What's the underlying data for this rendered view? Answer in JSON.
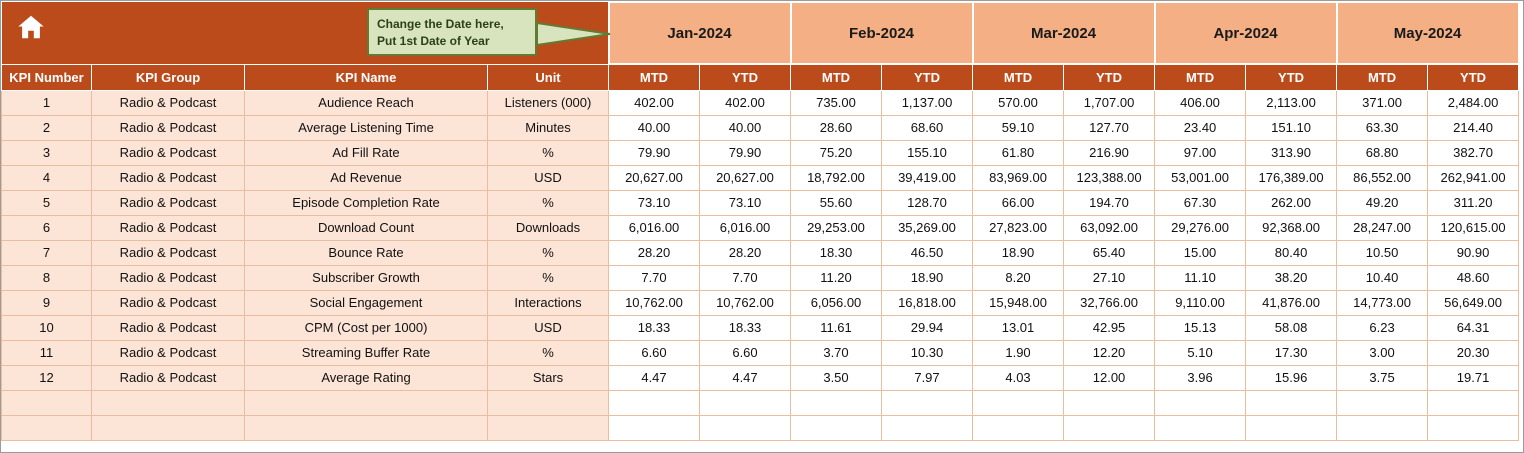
{
  "callout": {
    "line1": "Change the Date here,",
    "line2": "Put 1st Date of Year"
  },
  "table": {
    "months": [
      "Jan-2024",
      "Feb-2024",
      "Mar-2024",
      "Apr-2024",
      "May-2024"
    ],
    "period_headers": [
      "MTD",
      "YTD"
    ],
    "meta_columns": [
      "KPI Number",
      "KPI Group",
      "KPI Name",
      "Unit"
    ],
    "rows": [
      {
        "number": "1",
        "group": "Radio & Podcast",
        "name": "Audience Reach",
        "unit": "Listeners (000)",
        "values": [
          "402.00",
          "402.00",
          "735.00",
          "1,137.00",
          "570.00",
          "1,707.00",
          "406.00",
          "2,113.00",
          "371.00",
          "2,484.00"
        ]
      },
      {
        "number": "2",
        "group": "Radio & Podcast",
        "name": "Average Listening Time",
        "unit": "Minutes",
        "values": [
          "40.00",
          "40.00",
          "28.60",
          "68.60",
          "59.10",
          "127.70",
          "23.40",
          "151.10",
          "63.30",
          "214.40"
        ]
      },
      {
        "number": "3",
        "group": "Radio & Podcast",
        "name": "Ad Fill Rate",
        "unit": "%",
        "values": [
          "79.90",
          "79.90",
          "75.20",
          "155.10",
          "61.80",
          "216.90",
          "97.00",
          "313.90",
          "68.80",
          "382.70"
        ]
      },
      {
        "number": "4",
        "group": "Radio & Podcast",
        "name": "Ad Revenue",
        "unit": "USD",
        "values": [
          "20,627.00",
          "20,627.00",
          "18,792.00",
          "39,419.00",
          "83,969.00",
          "123,388.00",
          "53,001.00",
          "176,389.00",
          "86,552.00",
          "262,941.00"
        ]
      },
      {
        "number": "5",
        "group": "Radio & Podcast",
        "name": "Episode Completion Rate",
        "unit": "%",
        "values": [
          "73.10",
          "73.10",
          "55.60",
          "128.70",
          "66.00",
          "194.70",
          "67.30",
          "262.00",
          "49.20",
          "311.20"
        ]
      },
      {
        "number": "6",
        "group": "Radio & Podcast",
        "name": "Download Count",
        "unit": "Downloads",
        "values": [
          "6,016.00",
          "6,016.00",
          "29,253.00",
          "35,269.00",
          "27,823.00",
          "63,092.00",
          "29,276.00",
          "92,368.00",
          "28,247.00",
          "120,615.00"
        ]
      },
      {
        "number": "7",
        "group": "Radio & Podcast",
        "name": "Bounce Rate",
        "unit": "%",
        "values": [
          "28.20",
          "28.20",
          "18.30",
          "46.50",
          "18.90",
          "65.40",
          "15.00",
          "80.40",
          "10.50",
          "90.90"
        ]
      },
      {
        "number": "8",
        "group": "Radio & Podcast",
        "name": "Subscriber Growth",
        "unit": "%",
        "values": [
          "7.70",
          "7.70",
          "11.20",
          "18.90",
          "8.20",
          "27.10",
          "11.10",
          "38.20",
          "10.40",
          "48.60"
        ]
      },
      {
        "number": "9",
        "group": "Radio & Podcast",
        "name": "Social Engagement",
        "unit": "Interactions",
        "values": [
          "10,762.00",
          "10,762.00",
          "6,056.00",
          "16,818.00",
          "15,948.00",
          "32,766.00",
          "9,110.00",
          "41,876.00",
          "14,773.00",
          "56,649.00"
        ]
      },
      {
        "number": "10",
        "group": "Radio & Podcast",
        "name": "CPM (Cost per 1000)",
        "unit": "USD",
        "values": [
          "18.33",
          "18.33",
          "11.61",
          "29.94",
          "13.01",
          "42.95",
          "15.13",
          "58.08",
          "6.23",
          "64.31"
        ]
      },
      {
        "number": "11",
        "group": "Radio & Podcast",
        "name": "Streaming Buffer Rate",
        "unit": "%",
        "values": [
          "6.60",
          "6.60",
          "3.70",
          "10.30",
          "1.90",
          "12.20",
          "5.10",
          "17.30",
          "3.00",
          "20.30"
        ]
      },
      {
        "number": "12",
        "group": "Radio & Podcast",
        "name": "Average Rating",
        "unit": "Stars",
        "values": [
          "4.47",
          "4.47",
          "3.50",
          "7.97",
          "4.03",
          "12.00",
          "3.96",
          "15.96",
          "3.75",
          "19.71"
        ]
      }
    ],
    "empty_rows": 2
  },
  "colors": {
    "header_dark": "#BC4B1C",
    "month_band": "#F4B084",
    "meta_band": "#FCE4D6",
    "grid_line": "#E9BD9F",
    "callout_fill": "#D8E4BE",
    "callout_border": "#637A33"
  }
}
